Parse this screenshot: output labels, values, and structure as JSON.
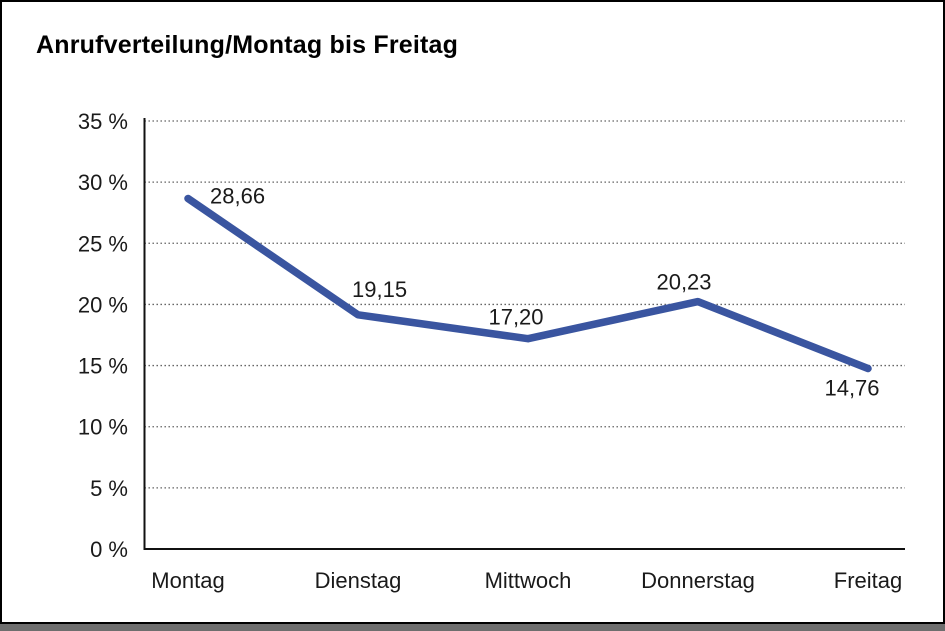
{
  "chart_data": {
    "type": "line",
    "title": "Anrufverteilung/Montag bis Freitag",
    "categories": [
      "Montag",
      "Dienstag",
      "Mittwoch",
      "Donnerstag",
      "Freitag"
    ],
    "series": [
      {
        "name": "Anrufverteilung",
        "values": [
          28.66,
          19.15,
          17.2,
          20.23,
          14.76
        ]
      }
    ],
    "value_labels": [
      "28,66",
      "19,15",
      "17,20",
      "20,23",
      "14,76"
    ],
    "y_tick_labels": [
      "35 %",
      "30 %",
      "25 %",
      "20 %",
      "15 %",
      "10 %",
      "5 %",
      "0 %"
    ],
    "ylim": [
      0,
      35
    ],
    "y_step": 5,
    "xlabel": "",
    "ylabel": "",
    "grid": "horizontal-dotted",
    "legend": "none",
    "line_color": "#3A55A0",
    "gridline_color": "#555555",
    "axis_color": "#111111",
    "label_color": "#1A1A1A",
    "background": "#FFFFFF",
    "frame_border_color": "#000000",
    "shadow_color": "#6E6E6E"
  }
}
